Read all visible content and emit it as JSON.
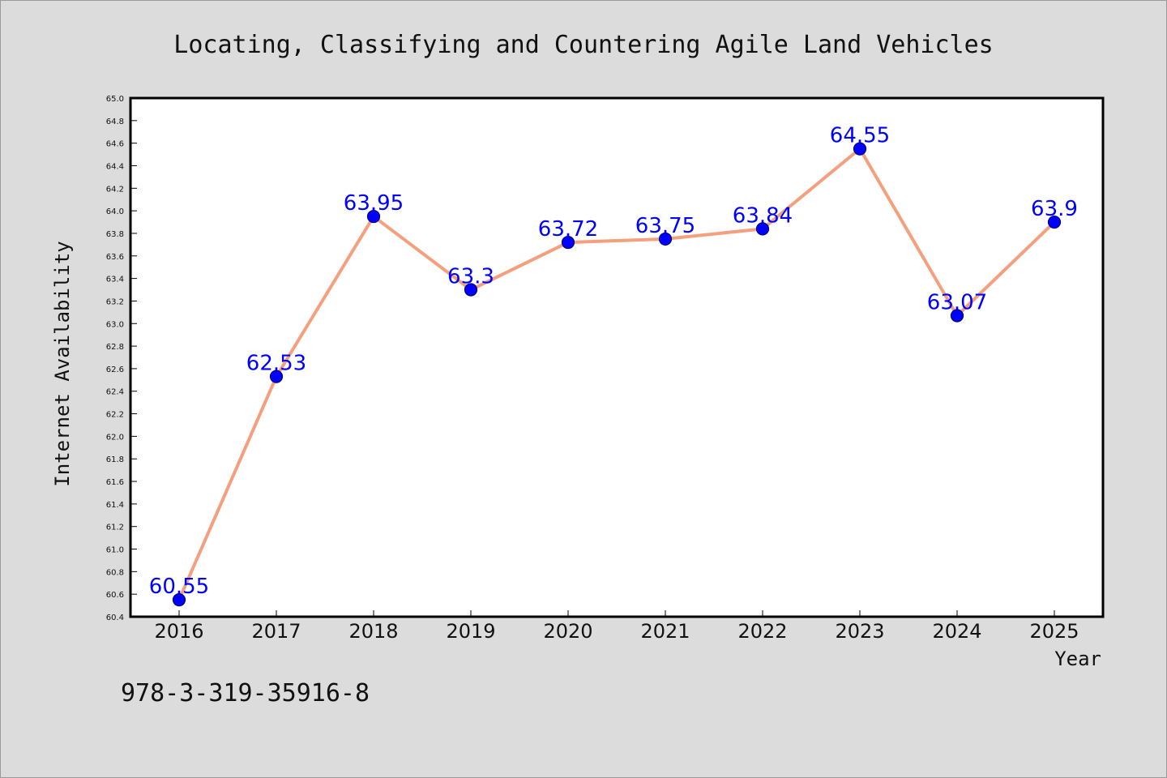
{
  "chart_data": {
    "type": "line",
    "title": "Locating, Classifying and Countering Agile Land Vehicles",
    "xlabel": "Year",
    "ylabel": "Internet Availability",
    "categories": [
      "2016",
      "2017",
      "2018",
      "2019",
      "2020",
      "2021",
      "2022",
      "2023",
      "2024",
      "2025"
    ],
    "values": [
      60.55,
      62.53,
      63.95,
      63.3,
      63.72,
      63.75,
      63.84,
      64.55,
      63.07,
      63.9
    ],
    "data_labels": [
      "60.55",
      "62.53",
      "63.95",
      "63.3",
      "63.72",
      "63.75",
      "63.84",
      "64.55",
      "63.07",
      "63.9"
    ],
    "ylim": [
      60.4,
      65.0
    ],
    "yticks": [
      "60.4",
      "60.6",
      "60.8",
      "61.0",
      "61.2",
      "61.4",
      "61.6",
      "61.8",
      "62.0",
      "62.2",
      "62.4",
      "62.6",
      "62.8",
      "63.0",
      "63.2",
      "63.4",
      "63.6",
      "63.8",
      "64.0",
      "64.2",
      "64.4",
      "64.6",
      "64.8",
      "65.0"
    ],
    "grid": false,
    "colors": {
      "line": "#f4a07f",
      "marker": "#0000ff",
      "marker_edge": "#000080",
      "data_label": "#0000ff",
      "plot_bg": "#ffffff",
      "figure_bg": "#dcdcdc"
    }
  },
  "footnote": "978-3-319-35916-8"
}
